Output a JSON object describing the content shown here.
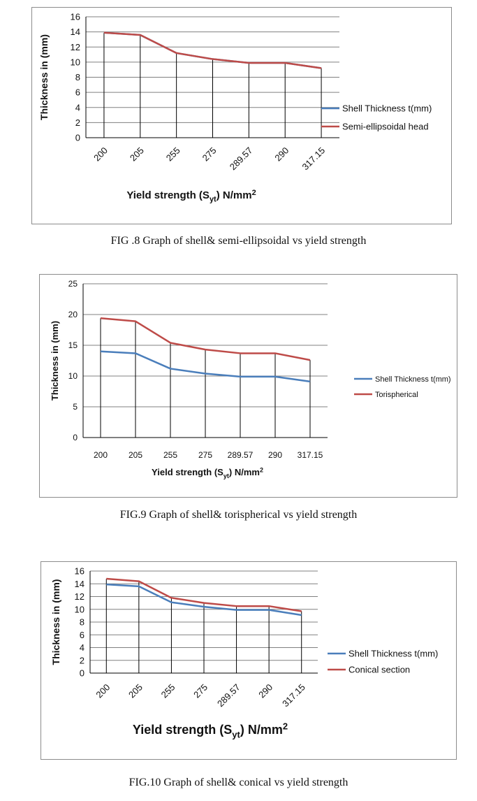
{
  "colors": {
    "shell": "#4a7ebb",
    "head": "#be4b48",
    "grid": "#808080",
    "axis": "#000000"
  },
  "figures": [
    {
      "caption": "FIG .8 Graph of shell& semi-ellipsoidal vs yield strength",
      "chart_data": {
        "type": "line",
        "ylabel": "Thickness in (mm)",
        "xlabel_parts": [
          "Yield strength (S",
          "yt",
          ") N/mm",
          "2"
        ],
        "ylim": [
          0,
          16
        ],
        "yticks": [
          0,
          2,
          4,
          6,
          8,
          10,
          12,
          14,
          16
        ],
        "categories": [
          "200",
          "205",
          "255",
          "275",
          "289.57",
          "290",
          "317.15"
        ],
        "series": [
          {
            "name": "Shell Thickness t(mm)",
            "values": [
              13.9,
              13.6,
              11.2,
              10.4,
              9.9,
              9.9,
              9.2
            ]
          },
          {
            "name": "Semi-ellipsoidal head",
            "values": [
              13.9,
              13.6,
              11.2,
              10.4,
              9.9,
              9.9,
              9.2
            ]
          }
        ],
        "legend": "right"
      }
    },
    {
      "caption": "FIG.9 Graph of shell& torispherical vs yield strength",
      "chart_data": {
        "type": "line",
        "ylabel": "Thickness in (mm)",
        "xlabel_parts": [
          "Yield strength (S",
          "yt",
          ") N/mm",
          "2"
        ],
        "ylim": [
          0,
          25
        ],
        "yticks": [
          0,
          5,
          10,
          15,
          20,
          25
        ],
        "categories": [
          "200",
          "205",
          "255",
          "275",
          "289.57",
          "290",
          "317.15"
        ],
        "series": [
          {
            "name": "Shell Thickness t(mm)",
            "values": [
              14.0,
              13.7,
              11.2,
              10.4,
              9.9,
              9.9,
              9.1
            ]
          },
          {
            "name": "Torispherical",
            "values": [
              19.4,
              18.9,
              15.4,
              14.3,
              13.7,
              13.7,
              12.6
            ]
          }
        ],
        "legend": "right"
      }
    },
    {
      "caption": "FIG.10 Graph of shell& conical vs yield strength",
      "chart_data": {
        "type": "line",
        "ylabel": "Thickness in (mm)",
        "xlabel_parts": [
          "Yield strength (S",
          "yt",
          ") N/mm",
          "2"
        ],
        "ylim": [
          0,
          16
        ],
        "yticks": [
          0,
          2,
          4,
          6,
          8,
          10,
          12,
          14,
          16
        ],
        "categories": [
          "200",
          "205",
          "255",
          "275",
          "289.57",
          "290",
          "317.15"
        ],
        "series": [
          {
            "name": "Shell Thickness t(mm)",
            "values": [
              13.9,
              13.6,
              11.1,
              10.4,
              9.9,
              9.9,
              9.1
            ]
          },
          {
            "name": "Conical section",
            "values": [
              14.8,
              14.4,
              11.8,
              11.0,
              10.5,
              10.5,
              9.7
            ]
          }
        ],
        "legend": "right"
      }
    }
  ]
}
